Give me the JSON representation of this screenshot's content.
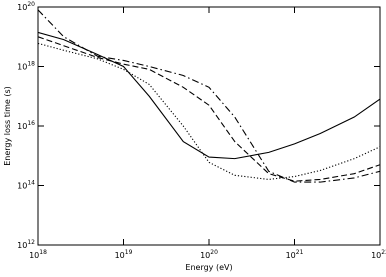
{
  "chart_data": {
    "type": "line",
    "xlabel": "Energy (eV)",
    "ylabel": "Energy loss time (s)",
    "xscale": "log",
    "yscale": "log",
    "xlim": [
      1e+18,
      1e+22
    ],
    "ylim": [
      1000000000000.0,
      1e+20
    ],
    "xticks": [
      {
        "value": 1e+18,
        "label": "10^18"
      },
      {
        "value": 1e+19,
        "label": "10^19"
      },
      {
        "value": 1e+20,
        "label": "10^20"
      },
      {
        "value": 1e+21,
        "label": "10^21"
      },
      {
        "value": 1e+22,
        "label": "10^22"
      }
    ],
    "yticks": [
      {
        "value": 1000000000000.0,
        "label": "10^12"
      },
      {
        "value": 100000000000000.0,
        "label": "10^14"
      },
      {
        "value": 1e+16,
        "label": "10^16"
      },
      {
        "value": 1e+18,
        "label": "10^18"
      },
      {
        "value": 1e+20,
        "label": "10^20"
      }
    ],
    "x": [
      1e+18,
      2e+18,
      5e+18,
      1e+19,
      2e+19,
      5e+19,
      1e+20,
      2e+20,
      5e+20,
      1e+21,
      2e+21,
      5e+21,
      1e+22
    ],
    "series": [
      {
        "color": "#000000",
        "dash": "solid",
        "values": [
          1.4e+19,
          8e+18,
          2.5e+18,
          1e+18,
          1e+17,
          3000000000000000.0,
          900000000000000.0,
          800000000000000.0,
          1300000000000000.0,
          2500000000000000.0,
          5600000000000000.0,
          2e+16,
          8e+16
        ]
      },
      {
        "color": "#000000",
        "dash": "dashed",
        "values": [
          1e+19,
          5e+18,
          2e+18,
          1.2e+18,
          8e+17,
          2e+17,
          5e+16,
          3000000000000000.0,
          250000000000000.0,
          140000000000000.0,
          160000000000000.0,
          250000000000000.0,
          500000000000000.0
        ]
      },
      {
        "color": "#000000",
        "dash": "dotted",
        "values": [
          6e+18,
          3.5e+18,
          1.8e+18,
          8e+17,
          2.5e+17,
          1e+16,
          600000000000000.0,
          220000000000000.0,
          160000000000000.0,
          200000000000000.0,
          320000000000000.0,
          800000000000000.0,
          2000000000000000.0
        ]
      },
      {
        "color": "#000000",
        "dash": "dashdot",
        "values": [
          8e+19,
          1e+19,
          2.2e+18,
          1.6e+18,
          1e+18,
          5e+17,
          2e+17,
          2e+16,
          300000000000000.0,
          130000000000000.0,
          130000000000000.0,
          180000000000000.0,
          300000000000000.0
        ]
      }
    ]
  }
}
